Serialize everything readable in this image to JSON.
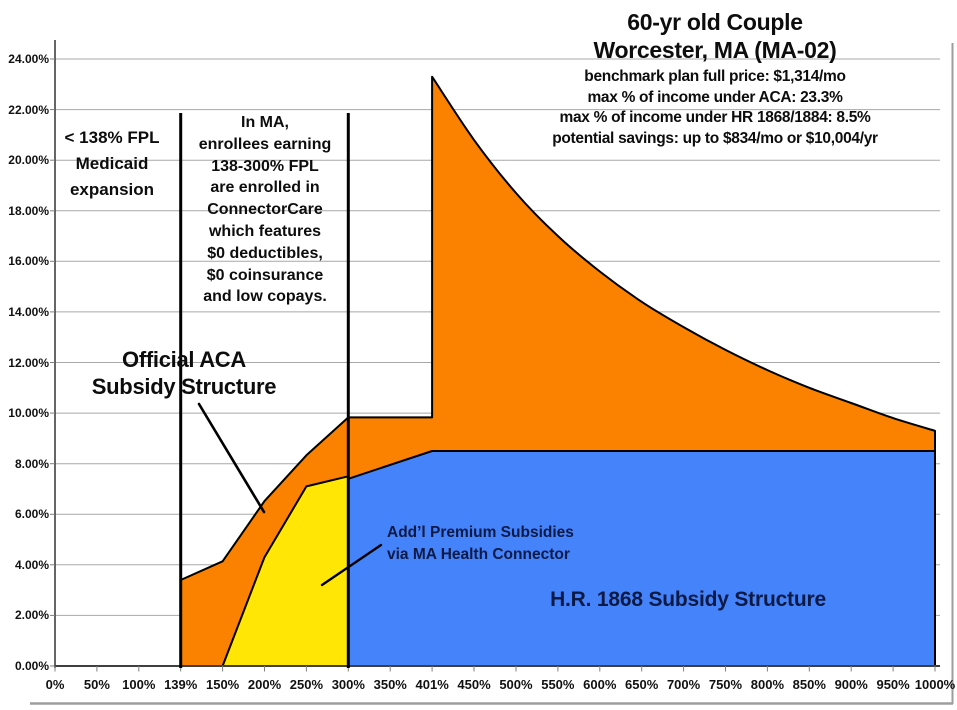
{
  "header": {
    "title_lines": [
      "60-yr old Couple",
      "Worcester, MA (MA-02)"
    ],
    "subtitle_lines": [
      "benchmark plan full price: $1,314/mo",
      "max % of income under ACA: 23.3%",
      "max % of income under HR 1868/1884: 8.5%",
      "potential savings: up to $834/mo or $10,004/yr"
    ]
  },
  "annotations": {
    "medicaid_lines": [
      "< 138% FPL",
      "Medicaid",
      "expansion"
    ],
    "connectorcare_lines": [
      "In MA,",
      "enrollees earning",
      "138-300% FPL",
      "are enrolled in",
      "ConnectorCare",
      "which features",
      "$0 deductibles,",
      "$0 coinsurance",
      "and low copays."
    ],
    "aca_label_lines": [
      "Official ACA",
      "Subsidy Structure"
    ],
    "addl_subsidy_lines": [
      "Add’l Premium Subsidies",
      "via MA Health Connector"
    ],
    "hr1868_label": "H.R. 1868 Subsidy Structure"
  },
  "chart_data": {
    "type": "area",
    "x_axis_categories": [
      "0%",
      "50%",
      "100%",
      "139%",
      "150%",
      "200%",
      "250%",
      "300%",
      "350%",
      "401%",
      "450%",
      "500%",
      "550%",
      "600%",
      "650%",
      "700%",
      "750%",
      "800%",
      "850%",
      "900%",
      "950%",
      "1000%"
    ],
    "y_tick_labels": [
      "0.00%",
      "2.00%",
      "4.00%",
      "6.00%",
      "8.00%",
      "10.00%",
      "12.00%",
      "14.00%",
      "16.00%",
      "18.00%",
      "20.00%",
      "22.00%",
      "24.00%"
    ],
    "ylim": [
      0,
      24
    ],
    "grid": true,
    "series": [
      {
        "name": "Official ACA Subsidy Structure",
        "color": "#FB8100",
        "smooth_after_peak": true,
        "points": [
          [
            "139%",
            3.4
          ],
          [
            "150%",
            4.14
          ],
          [
            "200%",
            6.52
          ],
          [
            "250%",
            8.33
          ],
          [
            "300%",
            9.83
          ],
          [
            "350%",
            9.83
          ],
          [
            "401%",
            9.83
          ],
          [
            "401%",
            23.3
          ],
          [
            "450%",
            20.8
          ],
          [
            "500%",
            18.7
          ],
          [
            "550%",
            17.0
          ],
          [
            "600%",
            15.6
          ],
          [
            "650%",
            14.4
          ],
          [
            "700%",
            13.4
          ],
          [
            "750%",
            12.5
          ],
          [
            "800%",
            11.7
          ],
          [
            "850%",
            11.0
          ],
          [
            "900%",
            10.4
          ],
          [
            "950%",
            9.8
          ],
          [
            "1000%",
            9.3
          ]
        ]
      },
      {
        "name": "H.R. 1868 Subsidy Structure",
        "color": "#4583FA",
        "smooth_after_peak": false,
        "points": [
          [
            "300%",
            7.4
          ],
          [
            "401%",
            8.5
          ],
          [
            "1000%",
            8.5
          ]
        ]
      },
      {
        "name": "Add'l Premium Subsidies via MA Health Connector",
        "color": "#FFE605",
        "smooth_after_peak": false,
        "points": [
          [
            "150%",
            0
          ],
          [
            "200%",
            4.3
          ],
          [
            "250%",
            7.1
          ],
          [
            "300%",
            7.5
          ]
        ]
      }
    ],
    "threshold_lines": [
      "139%",
      "300%"
    ]
  },
  "colors": {
    "outline": "#000000",
    "grid": "#A8A8A8",
    "axis": "#3F3F3F",
    "tick": "#7F7F7F",
    "navy_text": "#0D1A45",
    "slide_border": "#9D9D9D"
  }
}
